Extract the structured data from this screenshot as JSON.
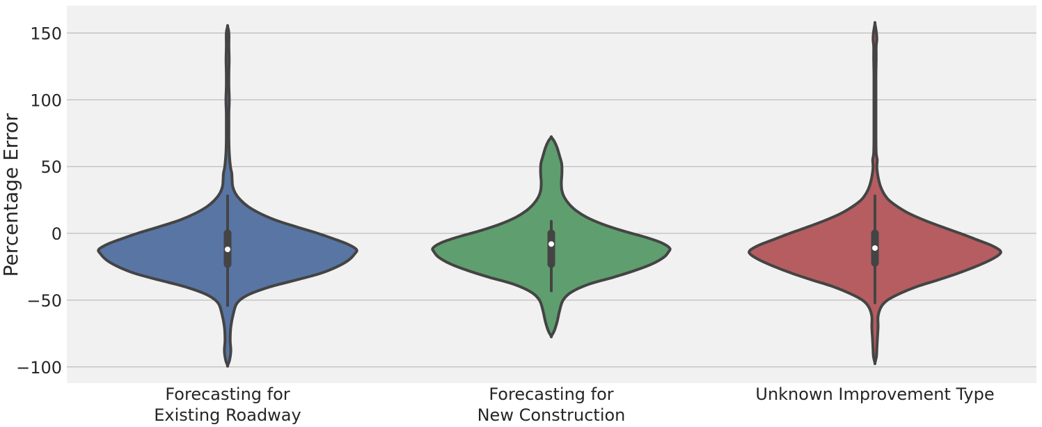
{
  "chart_data": {
    "type": "violin",
    "title": "",
    "xlabel": "",
    "ylabel": "Percentage Error",
    "ylim": [
      -112,
      170
    ],
    "yticks": [
      150,
      100,
      50,
      0,
      -50,
      -100
    ],
    "ytick_labels": [
      "150",
      "100",
      "50",
      "0",
      "−50",
      "−100"
    ],
    "grid": "horizontal",
    "colors": {
      "background": "#f1f1f1",
      "grid": "#b0b0b0",
      "outline": "#444444",
      "box": "#444444",
      "median": "#ffffff"
    },
    "series": [
      {
        "label_lines": [
          "Forecasting for",
          "Existing Roadway"
        ],
        "color": "#5875a4",
        "min": -54,
        "q1": -23,
        "median": -12,
        "q3": 0,
        "max": 28,
        "density": [
          [
            -99,
            0.0
          ],
          [
            -95,
            0.015
          ],
          [
            -88,
            0.025
          ],
          [
            -80,
            0.02
          ],
          [
            -70,
            0.025
          ],
          [
            -60,
            0.045
          ],
          [
            -52,
            0.075
          ],
          [
            -46,
            0.16
          ],
          [
            -40,
            0.33
          ],
          [
            -35,
            0.53
          ],
          [
            -30,
            0.72
          ],
          [
            -25,
            0.85
          ],
          [
            -20,
            0.94
          ],
          [
            -15,
            0.99
          ],
          [
            -12,
            1.0
          ],
          [
            -8,
            0.93
          ],
          [
            -4,
            0.82
          ],
          [
            0,
            0.7
          ],
          [
            5,
            0.53
          ],
          [
            10,
            0.37
          ],
          [
            15,
            0.25
          ],
          [
            20,
            0.16
          ],
          [
            25,
            0.1
          ],
          [
            30,
            0.06
          ],
          [
            35,
            0.04
          ],
          [
            40,
            0.035
          ],
          [
            45,
            0.032
          ],
          [
            50,
            0.022
          ],
          [
            60,
            0.013
          ],
          [
            70,
            0.01
          ],
          [
            80,
            0.01
          ],
          [
            90,
            0.01
          ],
          [
            100,
            0.013
          ],
          [
            110,
            0.01
          ],
          [
            120,
            0.01
          ],
          [
            130,
            0.012
          ],
          [
            140,
            0.01
          ],
          [
            150,
            0.01
          ],
          [
            155,
            0.0
          ]
        ]
      },
      {
        "label_lines": [
          "Forecasting for",
          "New Construction"
        ],
        "color": "#5f9e6e",
        "min": -43,
        "q1": -23,
        "median": -8,
        "q3": 0,
        "max": 9,
        "density": [
          [
            -77,
            0.0
          ],
          [
            -73,
            0.025
          ],
          [
            -66,
            0.05
          ],
          [
            -58,
            0.07
          ],
          [
            -50,
            0.1
          ],
          [
            -44,
            0.17
          ],
          [
            -38,
            0.32
          ],
          [
            -33,
            0.52
          ],
          [
            -28,
            0.7
          ],
          [
            -23,
            0.85
          ],
          [
            -18,
            0.95
          ],
          [
            -14,
            0.99
          ],
          [
            -11,
            1.0
          ],
          [
            -7,
            0.93
          ],
          [
            -3,
            0.8
          ],
          [
            2,
            0.6
          ],
          [
            7,
            0.43
          ],
          [
            12,
            0.3
          ],
          [
            17,
            0.21
          ],
          [
            22,
            0.15
          ],
          [
            27,
            0.11
          ],
          [
            32,
            0.09
          ],
          [
            38,
            0.085
          ],
          [
            45,
            0.09
          ],
          [
            52,
            0.088
          ],
          [
            58,
            0.07
          ],
          [
            64,
            0.05
          ],
          [
            69,
            0.025
          ],
          [
            72,
            0.0
          ]
        ]
      },
      {
        "label_lines": [
          "Unknown Improvement Type"
        ],
        "color": "#b55d60",
        "min": -52,
        "q1": -22,
        "median": -11,
        "q3": 0,
        "max": 28,
        "density": [
          [
            -97,
            0.0
          ],
          [
            -92,
            0.012
          ],
          [
            -85,
            0.016
          ],
          [
            -78,
            0.02
          ],
          [
            -70,
            0.025
          ],
          [
            -62,
            0.025
          ],
          [
            -55,
            0.05
          ],
          [
            -50,
            0.1
          ],
          [
            -45,
            0.2
          ],
          [
            -40,
            0.33
          ],
          [
            -35,
            0.5
          ],
          [
            -30,
            0.66
          ],
          [
            -25,
            0.8
          ],
          [
            -20,
            0.92
          ],
          [
            -16,
            0.99
          ],
          [
            -13,
            1.0
          ],
          [
            -9,
            0.93
          ],
          [
            -5,
            0.82
          ],
          [
            0,
            0.68
          ],
          [
            5,
            0.53
          ],
          [
            10,
            0.39
          ],
          [
            15,
            0.27
          ],
          [
            20,
            0.18
          ],
          [
            25,
            0.11
          ],
          [
            30,
            0.07
          ],
          [
            35,
            0.045
          ],
          [
            40,
            0.03
          ],
          [
            45,
            0.02
          ],
          [
            50,
            0.015
          ],
          [
            55,
            0.018
          ],
          [
            60,
            0.01
          ],
          [
            70,
            0.008
          ],
          [
            80,
            0.008
          ],
          [
            90,
            0.008
          ],
          [
            100,
            0.008
          ],
          [
            110,
            0.008
          ],
          [
            120,
            0.008
          ],
          [
            130,
            0.01
          ],
          [
            140,
            0.01
          ],
          [
            145,
            0.015
          ],
          [
            150,
            0.012
          ],
          [
            157,
            0.0
          ]
        ]
      }
    ]
  }
}
